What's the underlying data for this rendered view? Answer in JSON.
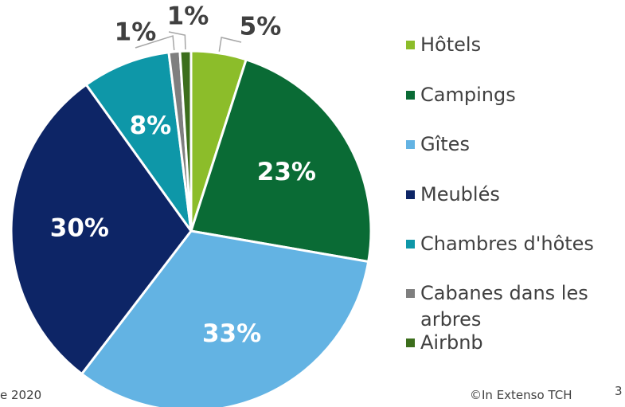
{
  "chart_data": {
    "type": "pie",
    "categories": [
      "Hôtels",
      "Campings",
      "Gîtes",
      "Meublés",
      "Chambres d'hôtes",
      "Cabanes dans les arbres",
      "Airbnb"
    ],
    "values": [
      5,
      23,
      33,
      30,
      8,
      1,
      1
    ],
    "value_labels": [
      "5%",
      "23%",
      "33%",
      "30%",
      "8%",
      "1%",
      "1%"
    ],
    "colors": [
      "#8cbd2a",
      "#0a6b35",
      "#63b3e3",
      "#0d2566",
      "#0e97a8",
      "#7f7f7f",
      "#3c6e1c"
    ]
  },
  "footer": {
    "left": "e 2020",
    "source": "©In Extenso TCH",
    "page": "3"
  }
}
